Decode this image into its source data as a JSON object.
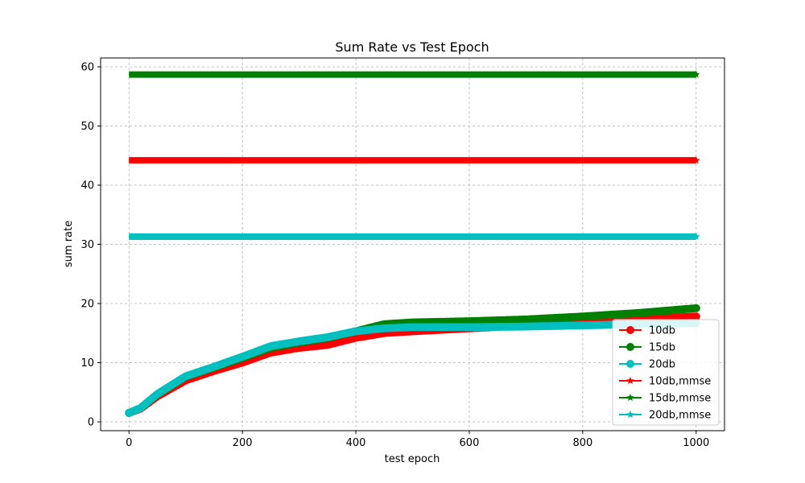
{
  "chart_data": {
    "type": "line",
    "title": "Sum Rate vs Test Epoch",
    "xlabel": "test epoch",
    "ylabel": "sum rate",
    "xlim": [
      -50,
      1050
    ],
    "ylim": [
      -1.5,
      61.5
    ],
    "xticks": [
      0,
      200,
      400,
      600,
      800,
      1000
    ],
    "yticks": [
      0,
      10,
      20,
      30,
      40,
      50,
      60
    ],
    "grid": true,
    "legend_position": "lower-right",
    "series": [
      {
        "name": "10db",
        "color": "#ff0000",
        "marker": "circle",
        "points": [
          [
            0,
            1.5
          ],
          [
            20,
            2.2
          ],
          [
            50,
            4.3
          ],
          [
            100,
            7.0
          ],
          [
            150,
            8.6
          ],
          [
            200,
            10.0
          ],
          [
            250,
            11.7
          ],
          [
            300,
            12.5
          ],
          [
            350,
            13.0
          ],
          [
            400,
            14.2
          ],
          [
            450,
            15.0
          ],
          [
            500,
            15.3
          ],
          [
            600,
            15.8
          ],
          [
            700,
            16.3
          ],
          [
            800,
            16.8
          ],
          [
            900,
            17.3
          ],
          [
            1000,
            17.8
          ]
        ]
      },
      {
        "name": "15db",
        "color": "#008000",
        "marker": "circle",
        "points": [
          [
            0,
            1.5
          ],
          [
            20,
            2.3
          ],
          [
            50,
            4.6
          ],
          [
            100,
            7.6
          ],
          [
            150,
            9.2
          ],
          [
            200,
            10.8
          ],
          [
            250,
            12.5
          ],
          [
            300,
            13.4
          ],
          [
            350,
            14.2
          ],
          [
            400,
            15.3
          ],
          [
            450,
            16.5
          ],
          [
            500,
            16.8
          ],
          [
            600,
            17.0
          ],
          [
            700,
            17.3
          ],
          [
            800,
            17.8
          ],
          [
            900,
            18.4
          ],
          [
            1000,
            19.2
          ]
        ]
      },
      {
        "name": "20db",
        "color": "#00bfbf",
        "marker": "circle",
        "points": [
          [
            0,
            1.5
          ],
          [
            20,
            2.3
          ],
          [
            50,
            4.7
          ],
          [
            100,
            7.7
          ],
          [
            150,
            9.3
          ],
          [
            200,
            11.0
          ],
          [
            250,
            12.8
          ],
          [
            300,
            13.6
          ],
          [
            350,
            14.3
          ],
          [
            400,
            15.3
          ],
          [
            450,
            15.8
          ],
          [
            500,
            16.0
          ],
          [
            600,
            16.0
          ],
          [
            700,
            16.1
          ],
          [
            800,
            16.3
          ],
          [
            900,
            16.5
          ],
          [
            1000,
            16.7
          ]
        ]
      },
      {
        "name": "10db,mmse",
        "color": "#ff0000",
        "marker": "star",
        "points": [
          [
            0,
            44.2
          ],
          [
            1000,
            44.2
          ]
        ]
      },
      {
        "name": "15db,mmse",
        "color": "#008000",
        "marker": "star",
        "points": [
          [
            0,
            58.7
          ],
          [
            1000,
            58.7
          ]
        ]
      },
      {
        "name": "20db,mmse",
        "color": "#00bfbf",
        "marker": "star",
        "points": [
          [
            0,
            31.3
          ],
          [
            1000,
            31.3
          ]
        ]
      }
    ]
  }
}
